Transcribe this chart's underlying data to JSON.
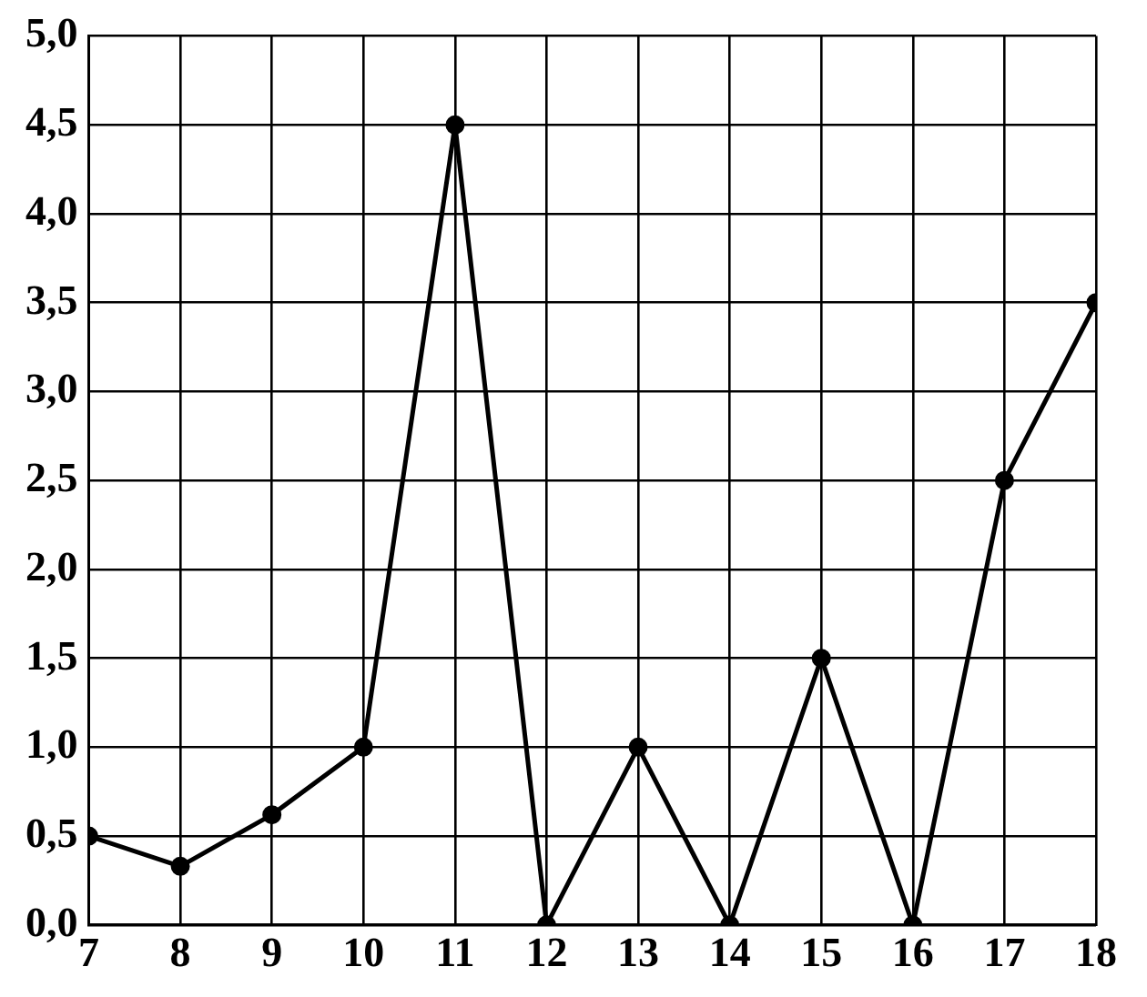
{
  "chart_data": {
    "type": "line",
    "x": [
      7,
      8,
      9,
      10,
      11,
      12,
      13,
      14,
      15,
      16,
      17,
      18
    ],
    "series": [
      {
        "color": "#000000",
        "values": [
          0.5,
          0.33,
          0.62,
          1.0,
          4.5,
          0,
          1.0,
          0,
          1.5,
          0,
          2.5,
          3.5
        ]
      }
    ],
    "xlim": [
      7,
      18
    ],
    "xticks": [
      7,
      8,
      9,
      10,
      11,
      12,
      13,
      14,
      15,
      16,
      17,
      18
    ],
    "ylim": [
      0,
      5
    ],
    "yticks": [
      {
        "value": 0,
        "label": "0,0"
      },
      {
        "value": 0.5,
        "label": "0,5"
      },
      {
        "value": 1,
        "label": "1,0"
      },
      {
        "value": 1.5,
        "label": "1,5"
      },
      {
        "value": 2,
        "label": "2,0"
      },
      {
        "value": 2.5,
        "label": "2,5"
      },
      {
        "value": 3,
        "label": "3,0"
      },
      {
        "value": 3.5,
        "label": "3,5"
      },
      {
        "value": 4,
        "label": "4,0"
      },
      {
        "value": 4.5,
        "label": "4,5"
      },
      {
        "value": 5,
        "label": "5,0"
      }
    ],
    "grid": true,
    "marker": "circle",
    "line_style": "solid",
    "legend": false
  }
}
